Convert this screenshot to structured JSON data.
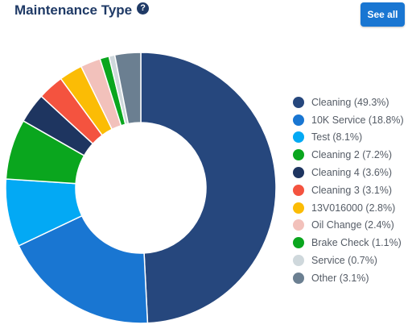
{
  "header": {
    "title": "Maintenance Type",
    "help_icon": "question-circle-icon",
    "help_symbol": "?",
    "see_all_label": "See all"
  },
  "colors": {
    "title": "#1f3a66",
    "button": "#1976d2"
  },
  "chart_data": {
    "type": "pie",
    "style": "donut",
    "title": "Maintenance Type",
    "legend_position": "right",
    "categories": [
      "Cleaning",
      "10K Service",
      "Test",
      "Cleaning 2",
      "Cleaning 4",
      "Cleaning 3",
      "13V016000",
      "Oil Change",
      "Brake Check",
      "Service",
      "Other"
    ],
    "values": [
      49.3,
      18.8,
      8.1,
      7.2,
      3.6,
      3.1,
      2.8,
      2.4,
      1.1,
      0.7,
      3.1
    ],
    "legend_labels": [
      "Cleaning (49.3%)",
      "10K Service (18.8%)",
      "Test (8.1%)",
      "Cleaning 2 (7.2%)",
      "Cleaning 4 (3.6%)",
      "Cleaning 3 (3.1%)",
      "13V016000 (2.8%)",
      "Oil Change (2.4%)",
      "Brake Check (1.1%)",
      "Service (0.7%)",
      "Other (3.1%)"
    ],
    "colors": [
      "#26477d",
      "#1976d2",
      "#03a9f4",
      "#0aa61e",
      "#1e3560",
      "#f4533f",
      "#fbbc05",
      "#f2c1bb",
      "#0aa61e",
      "#cfd8dc",
      "#6b7f91"
    ]
  }
}
